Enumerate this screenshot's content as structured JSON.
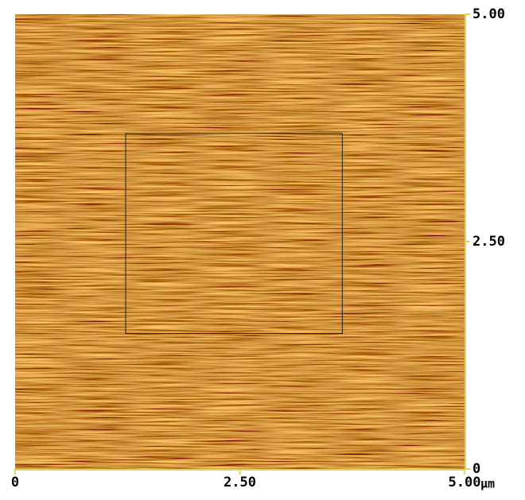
{
  "chart_data": {
    "type": "image",
    "x_unit": "μm",
    "xlim": [
      0,
      5
    ],
    "ylim": [
      0,
      5
    ],
    "xticks": [
      0,
      {
        "value": 2.5,
        "label": "2.50"
      },
      {
        "value": 5,
        "label": "5.00"
      }
    ],
    "yticks": [
      0,
      {
        "value": 2.5,
        "label": "2.50"
      },
      {
        "value": 5,
        "label": "5.00"
      }
    ],
    "region": {
      "x": [
        1.23,
        3.64
      ],
      "y": [
        1.49,
        3.69
      ]
    },
    "axis_color": "#e6d25a"
  }
}
